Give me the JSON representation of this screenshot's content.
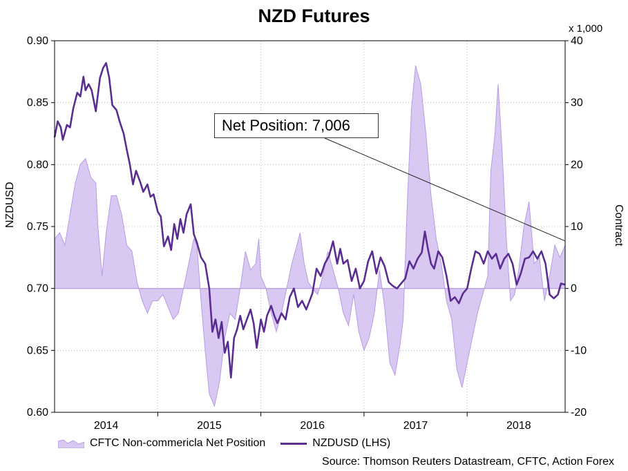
{
  "chart_data": {
    "type": "line",
    "title": "NZD Futures",
    "left_axis": {
      "label": "NZDUSD",
      "min": 0.6,
      "max": 0.9,
      "ticks": [
        "0.60",
        "0.65",
        "0.70",
        "0.75",
        "0.80",
        "0.85",
        "0.90"
      ]
    },
    "right_axis": {
      "label": "Contract",
      "unit_note": "x 1,000",
      "min": -20,
      "max": 40,
      "ticks": [
        "-20",
        "-10",
        "0",
        "10",
        "20",
        "30",
        "40"
      ]
    },
    "x_axis": {
      "min": 2013.5,
      "max": 2018.45,
      "ticks": [
        "2014",
        "2015",
        "2016",
        "2017",
        "2018"
      ],
      "tick_values": [
        2014,
        2015,
        2016,
        2017,
        2018
      ],
      "gridlines": [
        2014.5,
        2015.5,
        2016.5,
        2017.5
      ]
    },
    "series": [
      {
        "name": "CFTC Non-commericla Net Position",
        "type": "area",
        "axis": "right",
        "color": "#d9c8f2",
        "points": [
          [
            2013.5,
            8
          ],
          [
            2013.55,
            9
          ],
          [
            2013.6,
            7
          ],
          [
            2013.65,
            12
          ],
          [
            2013.7,
            17
          ],
          [
            2013.75,
            20
          ],
          [
            2013.8,
            21
          ],
          [
            2013.85,
            18
          ],
          [
            2013.9,
            17
          ],
          [
            2013.92,
            10
          ],
          [
            2013.96,
            2
          ],
          [
            2014.0,
            9
          ],
          [
            2014.05,
            15
          ],
          [
            2014.1,
            15
          ],
          [
            2014.15,
            12
          ],
          [
            2014.2,
            7
          ],
          [
            2014.25,
            6
          ],
          [
            2014.3,
            1
          ],
          [
            2014.35,
            -2
          ],
          [
            2014.4,
            -4
          ],
          [
            2014.45,
            -2
          ],
          [
            2014.5,
            -2
          ],
          [
            2014.55,
            -1
          ],
          [
            2014.6,
            -3
          ],
          [
            2014.65,
            -5
          ],
          [
            2014.7,
            -4
          ],
          [
            2014.75,
            0
          ],
          [
            2014.8,
            4
          ],
          [
            2014.85,
            8
          ],
          [
            2014.88,
            7
          ],
          [
            2014.92,
            -2
          ],
          [
            2014.96,
            -10
          ],
          [
            2015.0,
            -17
          ],
          [
            2015.05,
            -19
          ],
          [
            2015.1,
            -15
          ],
          [
            2015.15,
            -8
          ],
          [
            2015.2,
            -4
          ],
          [
            2015.25,
            -5
          ],
          [
            2015.3,
            0
          ],
          [
            2015.35,
            6
          ],
          [
            2015.4,
            3
          ],
          [
            2015.45,
            4
          ],
          [
            2015.48,
            8
          ],
          [
            2015.5,
            2
          ],
          [
            2015.55,
            0
          ],
          [
            2015.6,
            -4
          ],
          [
            2015.65,
            -7
          ],
          [
            2015.7,
            -4
          ],
          [
            2015.75,
            0
          ],
          [
            2015.8,
            4
          ],
          [
            2015.85,
            7
          ],
          [
            2015.88,
            9
          ],
          [
            2015.92,
            4
          ],
          [
            2015.96,
            1
          ],
          [
            2016.0,
            0
          ],
          [
            2016.05,
            -1
          ],
          [
            2016.1,
            2
          ],
          [
            2016.15,
            6
          ],
          [
            2016.2,
            3
          ],
          [
            2016.25,
            0
          ],
          [
            2016.3,
            -4
          ],
          [
            2016.35,
            -6
          ],
          [
            2016.4,
            -1
          ],
          [
            2016.45,
            -7
          ],
          [
            2016.5,
            -10
          ],
          [
            2016.55,
            -8
          ],
          [
            2016.6,
            -4
          ],
          [
            2016.65,
            3
          ],
          [
            2016.7,
            -3
          ],
          [
            2016.75,
            -12
          ],
          [
            2016.8,
            -14
          ],
          [
            2016.85,
            -9
          ],
          [
            2016.88,
            -5
          ],
          [
            2016.92,
            14
          ],
          [
            2016.96,
            29
          ],
          [
            2017.0,
            36
          ],
          [
            2017.05,
            33
          ],
          [
            2017.1,
            25
          ],
          [
            2017.15,
            15
          ],
          [
            2017.2,
            8
          ],
          [
            2017.25,
            4
          ],
          [
            2017.3,
            -2
          ],
          [
            2017.35,
            -5
          ],
          [
            2017.4,
            -13
          ],
          [
            2017.45,
            -16
          ],
          [
            2017.5,
            -12
          ],
          [
            2017.55,
            -8
          ],
          [
            2017.6,
            -4
          ],
          [
            2017.65,
            -1
          ],
          [
            2017.7,
            2
          ],
          [
            2017.73,
            19
          ],
          [
            2017.77,
            25
          ],
          [
            2017.8,
            33
          ],
          [
            2017.84,
            22
          ],
          [
            2017.88,
            8
          ],
          [
            2017.92,
            -2
          ],
          [
            2017.96,
            -1
          ],
          [
            2018.0,
            3
          ],
          [
            2018.05,
            10
          ],
          [
            2018.1,
            14
          ],
          [
            2018.15,
            4
          ],
          [
            2018.2,
            5
          ],
          [
            2018.25,
            -2
          ],
          [
            2018.3,
            2
          ],
          [
            2018.35,
            7
          ],
          [
            2018.4,
            5
          ],
          [
            2018.45,
            7
          ]
        ]
      },
      {
        "name": "NZDUSD (LHS)",
        "type": "line",
        "axis": "left",
        "color": "#5a2d91",
        "points": [
          [
            2013.5,
            0.822
          ],
          [
            2013.53,
            0.835
          ],
          [
            2013.56,
            0.83
          ],
          [
            2013.58,
            0.82
          ],
          [
            2013.62,
            0.832
          ],
          [
            2013.65,
            0.83
          ],
          [
            2013.68,
            0.845
          ],
          [
            2013.72,
            0.858
          ],
          [
            2013.75,
            0.855
          ],
          [
            2013.78,
            0.871
          ],
          [
            2013.8,
            0.86
          ],
          [
            2013.83,
            0.865
          ],
          [
            2013.86,
            0.86
          ],
          [
            2013.9,
            0.843
          ],
          [
            2013.94,
            0.87
          ],
          [
            2013.97,
            0.878
          ],
          [
            2014.0,
            0.882
          ],
          [
            2014.03,
            0.87
          ],
          [
            2014.06,
            0.848
          ],
          [
            2014.1,
            0.844
          ],
          [
            2014.13,
            0.835
          ],
          [
            2014.17,
            0.825
          ],
          [
            2014.2,
            0.812
          ],
          [
            2014.23,
            0.8
          ],
          [
            2014.26,
            0.784
          ],
          [
            2014.29,
            0.795
          ],
          [
            2014.33,
            0.786
          ],
          [
            2014.36,
            0.778
          ],
          [
            2014.4,
            0.784
          ],
          [
            2014.43,
            0.774
          ],
          [
            2014.46,
            0.776
          ],
          [
            2014.5,
            0.762
          ],
          [
            2014.53,
            0.758
          ],
          [
            2014.56,
            0.734
          ],
          [
            2014.6,
            0.742
          ],
          [
            2014.63,
            0.731
          ],
          [
            2014.66,
            0.752
          ],
          [
            2014.69,
            0.74
          ],
          [
            2014.72,
            0.756
          ],
          [
            2014.75,
            0.745
          ],
          [
            2014.78,
            0.76
          ],
          [
            2014.82,
            0.768
          ],
          [
            2014.85,
            0.744
          ],
          [
            2014.88,
            0.737
          ],
          [
            2014.92,
            0.725
          ],
          [
            2014.96,
            0.72
          ],
          [
            2015.0,
            0.7
          ],
          [
            2015.03,
            0.665
          ],
          [
            2015.06,
            0.675
          ],
          [
            2015.09,
            0.66
          ],
          [
            2015.12,
            0.673
          ],
          [
            2015.15,
            0.648
          ],
          [
            2015.18,
            0.657
          ],
          [
            2015.21,
            0.628
          ],
          [
            2015.24,
            0.66
          ],
          [
            2015.27,
            0.667
          ],
          [
            2015.3,
            0.678
          ],
          [
            2015.33,
            0.667
          ],
          [
            2015.36,
            0.674
          ],
          [
            2015.4,
            0.683
          ],
          [
            2015.43,
            0.672
          ],
          [
            2015.46,
            0.652
          ],
          [
            2015.5,
            0.675
          ],
          [
            2015.53,
            0.665
          ],
          [
            2015.56,
            0.678
          ],
          [
            2015.6,
            0.686
          ],
          [
            2015.63,
            0.678
          ],
          [
            2015.66,
            0.672
          ],
          [
            2015.7,
            0.68
          ],
          [
            2015.74,
            0.675
          ],
          [
            2015.78,
            0.693
          ],
          [
            2015.82,
            0.7
          ],
          [
            2015.86,
            0.685
          ],
          [
            2015.9,
            0.69
          ],
          [
            2015.94,
            0.683
          ],
          [
            2016.0,
            0.696
          ],
          [
            2016.04,
            0.716
          ],
          [
            2016.08,
            0.71
          ],
          [
            2016.12,
            0.72
          ],
          [
            2016.16,
            0.726
          ],
          [
            2016.2,
            0.738
          ],
          [
            2016.24,
            0.72
          ],
          [
            2016.27,
            0.732
          ],
          [
            2016.3,
            0.72
          ],
          [
            2016.34,
            0.723
          ],
          [
            2016.38,
            0.706
          ],
          [
            2016.42,
            0.716
          ],
          [
            2016.46,
            0.7
          ],
          [
            2016.5,
            0.706
          ],
          [
            2016.54,
            0.722
          ],
          [
            2016.58,
            0.73
          ],
          [
            2016.62,
            0.712
          ],
          [
            2016.66,
            0.725
          ],
          [
            2016.7,
            0.718
          ],
          [
            2016.74,
            0.705
          ],
          [
            2016.78,
            0.702
          ],
          [
            2016.82,
            0.7
          ],
          [
            2016.86,
            0.704
          ],
          [
            2016.9,
            0.708
          ],
          [
            2016.94,
            0.722
          ],
          [
            2016.98,
            0.716
          ],
          [
            2017.02,
            0.724
          ],
          [
            2017.06,
            0.729
          ],
          [
            2017.09,
            0.746
          ],
          [
            2017.12,
            0.732
          ],
          [
            2017.15,
            0.72
          ],
          [
            2017.18,
            0.716
          ],
          [
            2017.22,
            0.73
          ],
          [
            2017.26,
            0.725
          ],
          [
            2017.3,
            0.71
          ],
          [
            2017.34,
            0.69
          ],
          [
            2017.38,
            0.693
          ],
          [
            2017.42,
            0.688
          ],
          [
            2017.46,
            0.696
          ],
          [
            2017.5,
            0.7
          ],
          [
            2017.54,
            0.716
          ],
          [
            2017.58,
            0.73
          ],
          [
            2017.62,
            0.728
          ],
          [
            2017.66,
            0.72
          ],
          [
            2017.7,
            0.73
          ],
          [
            2017.74,
            0.724
          ],
          [
            2017.78,
            0.728
          ],
          [
            2017.82,
            0.716
          ],
          [
            2017.86,
            0.724
          ],
          [
            2017.9,
            0.728
          ],
          [
            2017.94,
            0.72
          ],
          [
            2017.98,
            0.703
          ],
          [
            2018.02,
            0.712
          ],
          [
            2018.06,
            0.724
          ],
          [
            2018.1,
            0.725
          ],
          [
            2018.14,
            0.73
          ],
          [
            2018.18,
            0.724
          ],
          [
            2018.22,
            0.73
          ],
          [
            2018.26,
            0.72
          ],
          [
            2018.3,
            0.695
          ],
          [
            2018.34,
            0.692
          ],
          [
            2018.38,
            0.695
          ],
          [
            2018.41,
            0.704
          ],
          [
            2018.45,
            0.703
          ]
        ]
      }
    ],
    "annotation": {
      "text": "Net Position: 7,006",
      "points_to": [
        2018.45,
        7
      ]
    }
  },
  "legend": {
    "area_label": "CFTC Non-commericla Net Position",
    "line_label": "NZDUSD (LHS)"
  },
  "source": "Source: Thomson Reuters Datastream, CFTC, Action Forex"
}
